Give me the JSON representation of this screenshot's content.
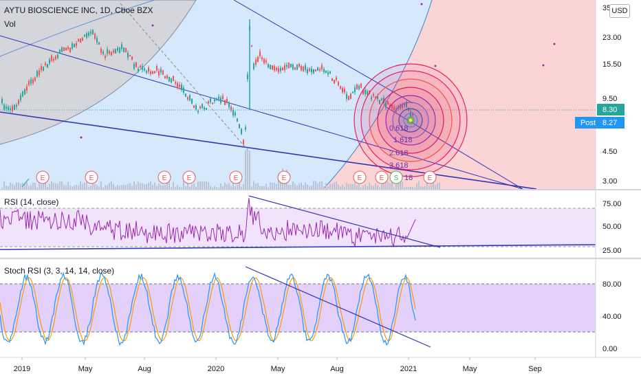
{
  "header": {
    "symbol_title": "AYTU BIOSCIENCE INC, 1D, Cboe BZX",
    "volume_label": "Vol"
  },
  "currency_button": "USD",
  "price_axis": {
    "ticks": [
      "35",
      "23.00",
      "15.50",
      "9.50",
      "4.50",
      "3.00"
    ],
    "last_price": "8.30",
    "post_label": "Post",
    "post_price": "8.27",
    "last_color": "#26a69a",
    "post_color": "#2196f3"
  },
  "rsi": {
    "label": "RSI (14, close)",
    "ticks": [
      "75.00",
      "50.00",
      "25.00"
    ]
  },
  "stoch": {
    "label": "Stoch RSI (3, 3, 14, 14, close)",
    "ticks": [
      "80.00",
      "40.00",
      "0.00"
    ]
  },
  "time_axis": [
    "2019",
    "May",
    "Aug",
    "2020",
    "May",
    "Aug",
    "2021",
    "May",
    "Sep"
  ],
  "earnings_marker": "E",
  "split_marker": "S",
  "fib_labels": [
    "0.618",
    "1.618",
    "2.618",
    "3.618"
  ],
  "fib_short": "18",
  "colors": {
    "gray_zone": "#d4d6db",
    "blue_zone": "#d6e8fb",
    "red_zone": "#fbd5d5",
    "rsi_band": "#f1e3fb",
    "stoch_band": "#e3d0fb",
    "trendline": "#3035b8",
    "rsi_line": "#9c27b0",
    "stoch_k": "#2196f3",
    "stoch_d": "#ff9800"
  }
}
